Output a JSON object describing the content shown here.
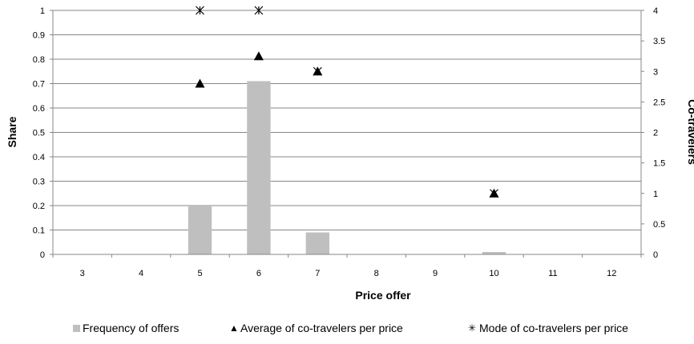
{
  "chart_data": {
    "type": "bar",
    "categories": [
      "3",
      "4",
      "5",
      "6",
      "7",
      "8",
      "9",
      "10",
      "11",
      "12"
    ],
    "series": [
      {
        "name": "Frequency of offers",
        "kind": "bar",
        "axis": "left",
        "color": "#bfbfbf",
        "values": [
          0,
          0,
          0.2,
          0.71,
          0.09,
          0,
          0,
          0.01,
          0,
          0
        ]
      },
      {
        "name": "Average of co-travelers per price",
        "kind": "marker",
        "marker": "triangle",
        "axis": "right",
        "color": "#000000",
        "values": [
          null,
          null,
          2.8,
          3.25,
          3,
          null,
          null,
          1,
          null,
          null
        ]
      },
      {
        "name": "Mode of co-travelers per price",
        "kind": "marker",
        "marker": "asterisk",
        "axis": "right",
        "color": "#000000",
        "values": [
          null,
          null,
          4,
          4,
          3,
          null,
          null,
          1,
          null,
          null
        ]
      }
    ],
    "xlabel": "Price offer",
    "ylabel": "Share",
    "y2label": "Co-travelers",
    "ylim": [
      0,
      1
    ],
    "y2lim": [
      0,
      4
    ],
    "yticks": [
      "0",
      "0.1",
      "0.2",
      "0.3",
      "0.4",
      "0.5",
      "0.6",
      "0.7",
      "0.8",
      "0.9",
      "1"
    ],
    "y2ticks": [
      "0",
      "0.5",
      "1",
      "1.5",
      "2",
      "2.5",
      "3",
      "3.5",
      "4"
    ],
    "grid": true,
    "legend_position": "bottom"
  }
}
